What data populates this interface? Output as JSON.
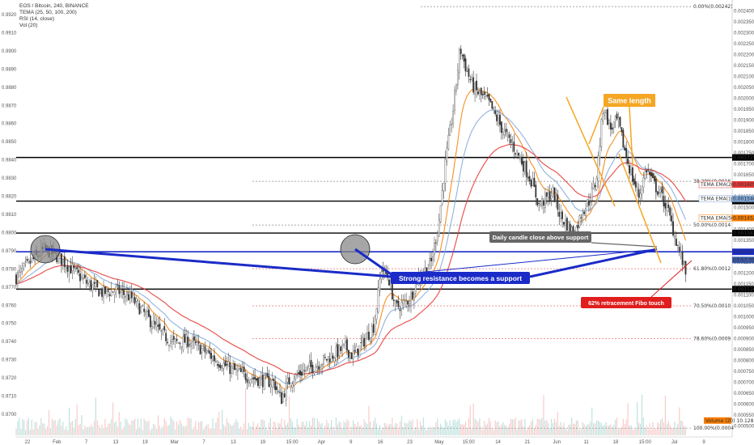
{
  "header": {
    "symbol_line": "EOS / Bitcoin, 240, BINANCE",
    "indicators": [
      "TEMA (25, 50, 100, 200)",
      "RSI (14, close)",
      "Vol (20)"
    ]
  },
  "chart_data": {
    "type": "candlestick",
    "left_axis_ticks": [
      "0.9920",
      "0.9910",
      "0.9900",
      "0.9890",
      "0.9880",
      "0.9870",
      "0.9860",
      "0.9850",
      "0.9840",
      "0.9830",
      "0.9820",
      "0.9810",
      "0.9800",
      "0.9790",
      "0.9780",
      "0.9770",
      "0.9760",
      "0.9750",
      "0.9740",
      "0.9730",
      "0.9720",
      "0.9710",
      "0.9700"
    ],
    "right_axis_ticks": [
      "0.0024000",
      "0.0023500",
      "0.0023000",
      "0.0022500",
      "0.0022000",
      "0.0021500",
      "0.0021000",
      "0.0020500",
      "0.0020000",
      "0.0019500",
      "0.0019000",
      "0.0018500",
      "0.0018000",
      "0.0017500",
      "0.0017000",
      "0.0016500",
      "0.0016000",
      "0.0015500",
      "0.0015000",
      "0.0014500",
      "0.0014000",
      "0.0013500",
      "0.0013000",
      "0.0012500",
      "0.0012000",
      "0.0011500",
      "0.0011000",
      "0.0010500",
      "0.0010000",
      "0.0009500",
      "0.0009000",
      "0.0008500",
      "0.0008000",
      "0.0007500",
      "0.0007000",
      "0.0006500",
      "0.0006000",
      "0.0005500",
      "0.0005000",
      "0.0004500"
    ],
    "x_ticks": [
      "22",
      "Feb",
      "7",
      "13",
      "19",
      "Mar",
      "7",
      "13",
      "19",
      "15:00",
      "Apr",
      "9",
      "16",
      "23",
      "May",
      "15:00",
      "14",
      "21",
      "Jun",
      "11",
      "18",
      "15:00",
      "Jul",
      "9"
    ],
    "price_range": [
      0.00045,
      0.00245
    ],
    "close_path": [
      [
        0.0,
        0.00118
      ],
      [
        0.02,
        0.00125
      ],
      [
        0.04,
        0.00131
      ],
      [
        0.06,
        0.00127
      ],
      [
        0.08,
        0.00121
      ],
      [
        0.1,
        0.00115
      ],
      [
        0.12,
        0.00111
      ],
      [
        0.14,
        0.00112
      ],
      [
        0.16,
        0.00109
      ],
      [
        0.18,
        0.00101
      ],
      [
        0.2,
        0.00093
      ],
      [
        0.22,
        0.00088
      ],
      [
        0.24,
        0.00089
      ],
      [
        0.26,
        0.00085
      ],
      [
        0.28,
        0.0008
      ],
      [
        0.3,
        0.00076
      ],
      [
        0.32,
        0.00073
      ],
      [
        0.34,
        0.00071
      ],
      [
        0.36,
        0.0007
      ],
      [
        0.37,
        0.00062
      ],
      [
        0.38,
        0.0007
      ],
      [
        0.4,
        0.00075
      ],
      [
        0.42,
        0.00078
      ],
      [
        0.44,
        0.00082
      ],
      [
        0.46,
        0.00086
      ],
      [
        0.47,
        0.00082
      ],
      [
        0.48,
        0.00086
      ],
      [
        0.5,
        0.00096
      ],
      [
        0.51,
        0.00122
      ],
      [
        0.52,
        0.00118
      ],
      [
        0.53,
        0.00104
      ],
      [
        0.55,
        0.00108
      ],
      [
        0.56,
        0.00117
      ],
      [
        0.58,
        0.00125
      ],
      [
        0.59,
        0.00143
      ],
      [
        0.6,
        0.00172
      ],
      [
        0.61,
        0.00194
      ],
      [
        0.62,
        0.00223
      ],
      [
        0.63,
        0.00212
      ],
      [
        0.64,
        0.00204
      ],
      [
        0.66,
        0.00198
      ],
      [
        0.68,
        0.00185
      ],
      [
        0.7,
        0.00175
      ],
      [
        0.72,
        0.00162
      ],
      [
        0.73,
        0.00151
      ],
      [
        0.75,
        0.00157
      ],
      [
        0.76,
        0.00146
      ],
      [
        0.78,
        0.00138
      ],
      [
        0.79,
        0.00148
      ],
      [
        0.8,
        0.00153
      ],
      [
        0.81,
        0.00162
      ],
      [
        0.82,
        0.00197
      ],
      [
        0.83,
        0.00186
      ],
      [
        0.84,
        0.0019
      ],
      [
        0.85,
        0.00176
      ],
      [
        0.86,
        0.00164
      ],
      [
        0.87,
        0.00155
      ],
      [
        0.88,
        0.00168
      ],
      [
        0.89,
        0.00161
      ],
      [
        0.9,
        0.00156
      ],
      [
        0.91,
        0.00149
      ],
      [
        0.92,
        0.00137
      ],
      [
        0.93,
        0.00126
      ],
      [
        0.935,
        0.0012
      ]
    ],
    "fib_levels": [
      {
        "label": "0.00%(0.00242)",
        "value": 0.00242
      },
      {
        "label": "38.20%(0.0016",
        "value": 0.00162
      },
      {
        "label": "50.00%(0.0014",
        "value": 0.00142
      },
      {
        "label": "61.80%(0.0012",
        "value": 0.00122
      },
      {
        "label": "70.50%(0.0010",
        "value": 0.00105
      },
      {
        "label": "78.60%(0.0009",
        "value": 0.0009
      },
      {
        "label": "100.00%(0.0004",
        "value": 0.00049
      }
    ],
    "horizontal_levels": [
      {
        "label": "0.0017292",
        "value": 0.0017292,
        "color": "#000000"
      },
      {
        "label": "0.0015295",
        "value": 0.0015295,
        "color": "#000000"
      },
      {
        "label": "0.0013830",
        "value": 0.001383,
        "color": "#000000"
      },
      {
        "label": "0.0012973",
        "value": 0.0012973,
        "color": "#1a2bc8"
      },
      {
        "label": "0.0011266",
        "value": 0.0011266,
        "color": "#000000"
      }
    ],
    "right_tags": [
      {
        "label": "TEMA EMA(200) 0.0016056",
        "value": 0.0016056,
        "color": "#e53935"
      },
      {
        "label": "TEMA EMA(100) 0.0015400",
        "value": 0.00154,
        "color": "#7fa6d6"
      },
      {
        "label": "TEMA EMA(50) 0.0014521",
        "value": 0.0014521,
        "color": "#f57c00"
      },
      {
        "label": "03:57:35",
        "value": 0.00126,
        "color": "#3c5aa8"
      },
      {
        "label": "Volume (20) 10.128M",
        "value": 0.000525,
        "color": "#f57c00"
      }
    ]
  },
  "annotations": {
    "same_length": "Same length",
    "daily_close": "Daily candle close above support",
    "strong_resistance": "Strong resistance becomes a support",
    "fibo_touch": "62% retracement Fibo touch"
  },
  "colors": {
    "up": "#26a69a",
    "down": "#ef5350",
    "candle": "#555555",
    "tema200": "#e53935",
    "tema100": "#7fa6d6",
    "tema50": "#f57c00",
    "support": "#1a2bc8",
    "orange_box": "#f5a623"
  }
}
